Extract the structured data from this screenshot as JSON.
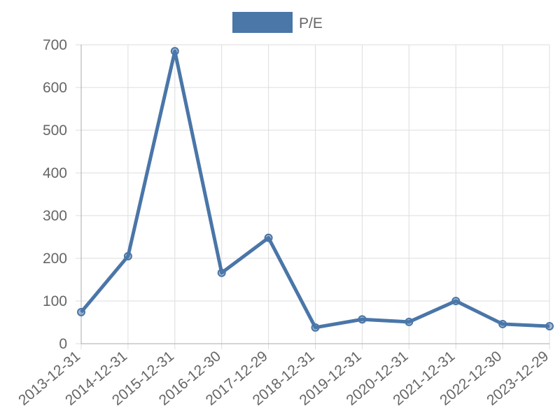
{
  "chart_data": {
    "type": "line",
    "categories": [
      "2013-12-31",
      "2014-12-31",
      "2015-12-31",
      "2016-12-30",
      "2017-12-29",
      "2018-12-31",
      "2019-12-31",
      "2020-12-31",
      "2021-12-31",
      "2022-12-30",
      "2023-12-29"
    ],
    "series": [
      {
        "name": "P/E",
        "color": "#4a76a8",
        "values": [
          74,
          205,
          685,
          166,
          248,
          38,
          57,
          51,
          100,
          46,
          41
        ]
      }
    ],
    "ylim": [
      0,
      700
    ],
    "yticks": [
      0,
      100,
      200,
      300,
      400,
      500,
      600,
      700
    ],
    "grid": true,
    "legend": "top"
  }
}
